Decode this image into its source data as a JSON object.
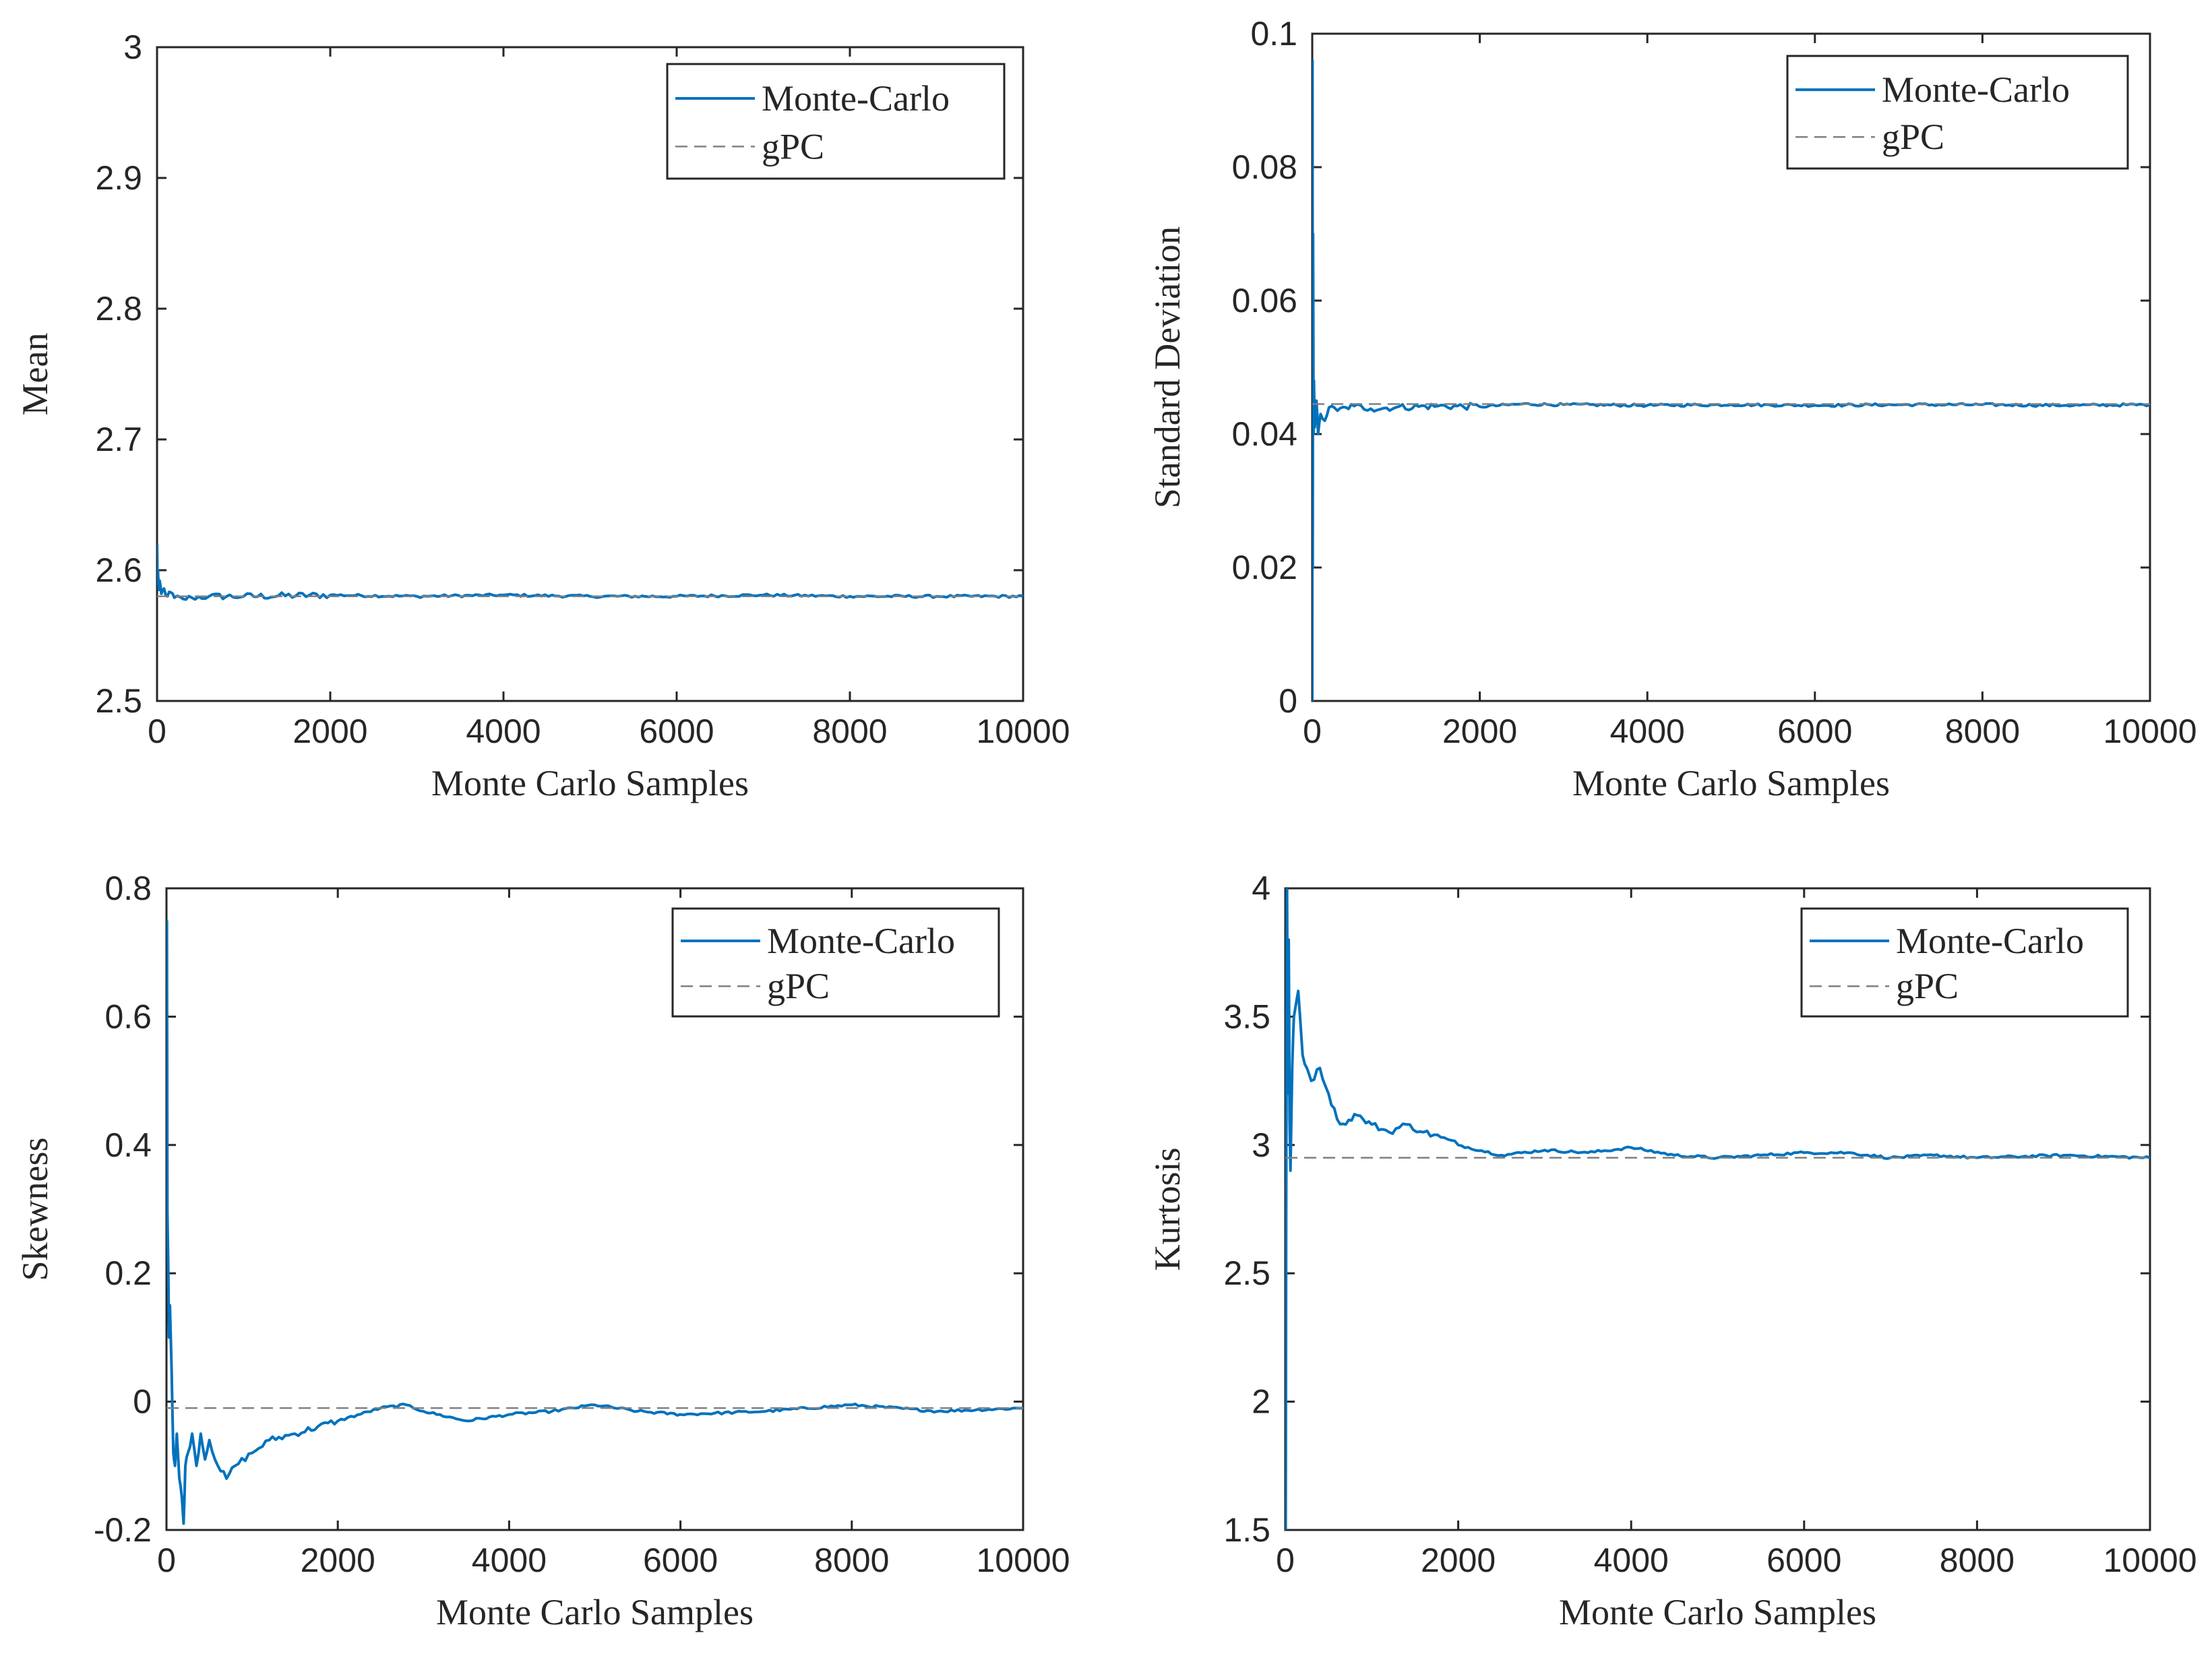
{
  "colors": {
    "mc": "#0072BD",
    "gpc": "#808080",
    "axis": "#262626",
    "background": "#ffffff"
  },
  "chart_data": [
    {
      "type": "line",
      "id": "mean",
      "xlabel": "Monte Carlo Samples",
      "ylabel": "Mean",
      "xlim": [
        0,
        10000
      ],
      "ylim": [
        2.5,
        3
      ],
      "xticks": [
        "0",
        "2000",
        "4000",
        "6000",
        "8000",
        "10000"
      ],
      "yticks": [
        "2.5",
        "2.6",
        "2.7",
        "2.8",
        "2.9",
        "3"
      ],
      "legend": {
        "location": "top-right",
        "entries": [
          "Monte-Carlo",
          "gPC"
        ]
      },
      "series": [
        {
          "name": "Monte-Carlo",
          "style": "solid",
          "x": [
            1,
            5,
            10,
            20,
            30,
            50,
            80,
            120,
            160,
            200,
            300,
            400,
            600,
            1000,
            2000,
            3000,
            4000,
            5000,
            6000,
            7000,
            8000,
            9000,
            10000
          ],
          "y": [
            2.62,
            2.59,
            2.6,
            2.585,
            2.592,
            2.582,
            2.586,
            2.58,
            2.583,
            2.579,
            2.578,
            2.579,
            2.58,
            2.58,
            2.581,
            2.58,
            2.581,
            2.58,
            2.58,
            2.581,
            2.58,
            2.58,
            2.58
          ]
        },
        {
          "name": "gPC",
          "style": "dashed",
          "x": [
            0,
            10000
          ],
          "y": [
            2.58,
            2.58
          ]
        }
      ]
    },
    {
      "type": "line",
      "id": "std",
      "xlabel": "Monte Carlo Samples",
      "ylabel": "Standard Deviation",
      "xlim": [
        0,
        10000
      ],
      "ylim": [
        0,
        0.1
      ],
      "xticks": [
        "0",
        "2000",
        "4000",
        "6000",
        "8000",
        "10000"
      ],
      "yticks": [
        "0",
        "0.02",
        "0.04",
        "0.06",
        "0.08",
        "0.1"
      ],
      "legend": {
        "location": "top-right",
        "entries": [
          "Monte-Carlo",
          "gPC"
        ]
      },
      "series": [
        {
          "name": "Monte-Carlo",
          "style": "solid",
          "x": [
            1,
            3,
            6,
            10,
            15,
            20,
            30,
            50,
            70,
            100,
            150,
            200,
            300,
            400,
            500,
            700,
            1000,
            1500,
            2000,
            2500,
            3000,
            4000,
            5000,
            6000,
            7000,
            8000,
            9000,
            10000
          ],
          "y": [
            0,
            0.096,
            0.02,
            0.07,
            0.04,
            0.048,
            0.041,
            0.045,
            0.04,
            0.043,
            0.042,
            0.044,
            0.0435,
            0.044,
            0.0442,
            0.0438,
            0.044,
            0.0442,
            0.0441,
            0.0445,
            0.0444,
            0.0443,
            0.0444,
            0.0443,
            0.0444,
            0.0444,
            0.0443,
            0.0444
          ]
        },
        {
          "name": "gPC",
          "style": "dashed",
          "x": [
            0,
            10000
          ],
          "y": [
            0.0445,
            0.0445
          ]
        }
      ]
    },
    {
      "type": "line",
      "id": "skewness",
      "xlabel": "Monte Carlo Samples",
      "ylabel": "Skewness",
      "xlim": [
        0,
        10000
      ],
      "ylim": [
        -0.2,
        0.8
      ],
      "xticks": [
        "0",
        "2000",
        "4000",
        "6000",
        "8000",
        "10000"
      ],
      "yticks": [
        "-0.2",
        "0",
        "0.2",
        "0.4",
        "0.6",
        "0.8"
      ],
      "legend": {
        "location": "top-right",
        "entries": [
          "Monte-Carlo",
          "gPC"
        ]
      },
      "series": [
        {
          "name": "Monte-Carlo",
          "style": "solid",
          "x": [
            5,
            10,
            20,
            30,
            40,
            60,
            80,
            100,
            120,
            150,
            180,
            200,
            220,
            250,
            300,
            350,
            400,
            450,
            500,
            600,
            700,
            800,
            1000,
            1200,
            1500,
            2000,
            2500,
            2800,
            3000,
            3500,
            4000,
            4500,
            5000,
            5500,
            6000,
            7000,
            8000,
            9000,
            10000
          ],
          "y": [
            0.75,
            0.3,
            0.22,
            0.1,
            0.15,
            0.05,
            -0.08,
            -0.1,
            -0.05,
            -0.12,
            -0.15,
            -0.19,
            -0.1,
            -0.08,
            -0.05,
            -0.1,
            -0.05,
            -0.09,
            -0.06,
            -0.1,
            -0.12,
            -0.1,
            -0.08,
            -0.06,
            -0.05,
            -0.03,
            -0.01,
            -0.005,
            -0.015,
            -0.03,
            -0.02,
            -0.015,
            -0.005,
            -0.015,
            -0.02,
            -0.015,
            -0.005,
            -0.015,
            -0.01
          ]
        },
        {
          "name": "gPC",
          "style": "dashed",
          "x": [
            0,
            10000
          ],
          "y": [
            -0.01,
            -0.01
          ]
        }
      ]
    },
    {
      "type": "line",
      "id": "kurtosis",
      "xlabel": "Monte Carlo Samples",
      "ylabel": "Kurtosis",
      "xlim": [
        0,
        10000
      ],
      "ylim": [
        1.5,
        4
      ],
      "xticks": [
        "0",
        "2000",
        "4000",
        "6000",
        "8000",
        "10000"
      ],
      "yticks": [
        "1.5",
        "2",
        "2.5",
        "3",
        "3.5",
        "4"
      ],
      "legend": {
        "location": "top-right",
        "entries": [
          "Monte-Carlo",
          "gPC"
        ]
      },
      "series": [
        {
          "name": "Monte-Carlo",
          "style": "solid",
          "x": [
            5,
            10,
            20,
            30,
            40,
            50,
            60,
            80,
            100,
            150,
            200,
            250,
            300,
            400,
            500,
            600,
            700,
            800,
            900,
            1000,
            1200,
            1400,
            1600,
            1800,
            2000,
            2500,
            3000,
            3500,
            4000,
            4500,
            5000,
            5500,
            6000,
            6500,
            7000,
            7500,
            8000,
            9000,
            10000
          ],
          "y": [
            1.5,
            2.7,
            4.0,
            3.2,
            3.8,
            3.1,
            2.9,
            3.3,
            3.5,
            3.6,
            3.35,
            3.3,
            3.25,
            3.3,
            3.2,
            3.1,
            3.08,
            3.12,
            3.1,
            3.08,
            3.05,
            3.08,
            3.05,
            3.03,
            3.0,
            2.96,
            2.98,
            2.97,
            2.99,
            2.96,
            2.95,
            2.96,
            2.97,
            2.97,
            2.95,
            2.96,
            2.95,
            2.96,
            2.95
          ]
        },
        {
          "name": "gPC",
          "style": "dashed",
          "x": [
            0,
            10000
          ],
          "y": [
            2.95,
            2.95
          ]
        }
      ]
    }
  ]
}
